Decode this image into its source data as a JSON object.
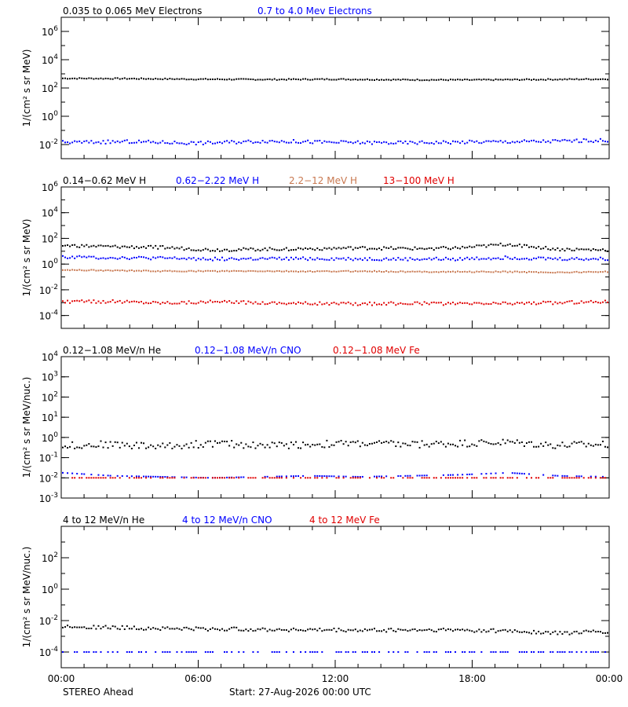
{
  "colors": {
    "black": "#000000",
    "blue": "#0000ff",
    "tan": "#c87850",
    "red": "#e00000"
  },
  "footer": {
    "mission": "STEREO Ahead",
    "start": "Start: 27-Aug-2026 00:00 UTC"
  },
  "chart_data": [
    {
      "type": "scatter",
      "x_ticks": [
        "00:00",
        "06:00",
        "12:00",
        "18:00",
        "00:00"
      ],
      "x_range_hours": [
        0,
        24
      ],
      "ylabel": "1/(cm² s sr MeV)",
      "ylim_log10": [
        -3,
        7
      ],
      "y_ticks": [
        {
          "exp": -2,
          "label": "10",
          "sup": "-2"
        },
        {
          "exp": 0,
          "label": "10",
          "sup": "0"
        },
        {
          "exp": 2,
          "label": "10",
          "sup": "2"
        },
        {
          "exp": 4,
          "label": "10",
          "sup": "4"
        },
        {
          "exp": 6,
          "label": "10",
          "sup": "6"
        }
      ],
      "series": [
        {
          "name": "0.035 to 0.065 MeV Electrons",
          "color": "#000000",
          "log10_values": [
            2.68,
            2.66,
            2.62,
            2.6,
            2.62,
            2.58,
            2.57,
            2.6,
            2.63
          ]
        },
        {
          "name": "0.7 to 4.0 Mev Electrons",
          "color": "#0000ff",
          "log10_values": [
            -1.85,
            -1.8,
            -1.9,
            -1.75,
            -1.85,
            -1.88,
            -1.82,
            -1.78,
            -1.7
          ]
        }
      ]
    },
    {
      "type": "scatter",
      "x_ticks": [
        "00:00",
        "06:00",
        "12:00",
        "18:00",
        "00:00"
      ],
      "x_range_hours": [
        0,
        24
      ],
      "ylabel": "1/(cm² s sr MeV)",
      "ylim_log10": [
        -5,
        6
      ],
      "y_ticks": [
        {
          "exp": -4,
          "label": "10",
          "sup": "-4"
        },
        {
          "exp": -2,
          "label": "10",
          "sup": "-2"
        },
        {
          "exp": 0,
          "label": "10",
          "sup": "0"
        },
        {
          "exp": 2,
          "label": "10",
          "sup": "2"
        },
        {
          "exp": 4,
          "label": "10",
          "sup": "4"
        },
        {
          "exp": 6,
          "label": "10",
          "sup": "6"
        }
      ],
      "series": [
        {
          "name": "0.14−0.62 MeV H",
          "color": "#000000",
          "log10_values": [
            1.45,
            1.35,
            1.3,
            1.1,
            1.15,
            1.2,
            1.25,
            1.2,
            1.25,
            1.55,
            1.15,
            1.1
          ]
        },
        {
          "name": "0.62−2.22 MeV H",
          "color": "#0000ff",
          "log10_values": [
            0.55,
            0.5,
            0.45,
            0.4,
            0.4,
            0.42,
            0.4,
            0.38,
            0.4,
            0.5,
            0.4,
            0.4
          ]
        },
        {
          "name": "2.2−12 MeV H",
          "color": "#c87850",
          "log10_values": [
            -0.45,
            -0.5,
            -0.55,
            -0.55,
            -0.55,
            -0.58,
            -0.55,
            -0.6,
            -0.6,
            -0.6,
            -0.65,
            -0.6
          ]
        },
        {
          "name": "13−100 MeV H",
          "color": "#e00000",
          "log10_values": [
            -2.95,
            -2.9,
            -3.0,
            -2.95,
            -3.0,
            -3.05,
            -3.1,
            -3.05,
            -3.1,
            -3.05,
            -3.0,
            -2.9
          ]
        }
      ]
    },
    {
      "type": "scatter",
      "x_ticks": [
        "00:00",
        "06:00",
        "12:00",
        "18:00",
        "00:00"
      ],
      "x_range_hours": [
        0,
        24
      ],
      "ylabel": "1/(cm² s sr MeV/nuc.)",
      "ylim_log10": [
        -3,
        4
      ],
      "y_ticks": [
        {
          "exp": -3,
          "label": "10",
          "sup": "-3"
        },
        {
          "exp": -2,
          "label": "10",
          "sup": "-2"
        },
        {
          "exp": -1,
          "label": "10",
          "sup": "-1"
        },
        {
          "exp": 0,
          "label": "10",
          "sup": "0"
        },
        {
          "exp": 1,
          "label": "10",
          "sup": "1"
        },
        {
          "exp": 2,
          "label": "10",
          "sup": "2"
        },
        {
          "exp": 3,
          "label": "10",
          "sup": "3"
        },
        {
          "exp": 4,
          "label": "10",
          "sup": "4"
        }
      ],
      "series": [
        {
          "name": "0.12−1.08 MeV/n He",
          "color": "#000000",
          "log10_values": [
            -0.4,
            -0.35,
            -0.45,
            -0.3,
            -0.4,
            -0.35,
            -0.3,
            -0.35,
            -0.3,
            -0.25,
            -0.4,
            -0.35
          ]
        },
        {
          "name": "0.12−1.08 MeV/n CNO",
          "color": "#0000ff",
          "log10_values": [
            -1.75,
            -1.9,
            -1.95,
            -2.0,
            -1.95,
            -1.9,
            -1.95,
            -1.9,
            -1.85,
            -1.75,
            -1.9,
            -1.95
          ]
        },
        {
          "name": "0.12−1.08 MeV Fe",
          "color": "#e00000",
          "log10_values": [
            -2.0,
            -2.0,
            -2.0,
            -2.0,
            -2.0,
            -2.0,
            -2.0,
            -2.0,
            -2.0,
            -2.0,
            -2.0,
            -2.0
          ]
        }
      ]
    },
    {
      "type": "scatter",
      "x_ticks": [
        "00:00",
        "06:00",
        "12:00",
        "18:00",
        "00:00"
      ],
      "x_range_hours": [
        0,
        24
      ],
      "ylabel": "1/(cm² s sr MeV/nuc.)",
      "ylim_log10": [
        -5,
        4
      ],
      "y_ticks": [
        {
          "exp": -4,
          "label": "10",
          "sup": "-4"
        },
        {
          "exp": -2,
          "label": "10",
          "sup": "-2"
        },
        {
          "exp": 0,
          "label": "10",
          "sup": "0"
        },
        {
          "exp": 2,
          "label": "10",
          "sup": "2"
        }
      ],
      "series": [
        {
          "name": "4 to 12 MeV/n He",
          "color": "#000000",
          "log10_values": [
            -2.35,
            -2.45,
            -2.5,
            -2.55,
            -2.55,
            -2.6,
            -2.62,
            -2.6,
            -2.6,
            -2.65,
            -2.8,
            -2.7
          ]
        },
        {
          "name": "4 to 12 MeV/n CNO",
          "color": "#0000ff",
          "log10_values": [
            -4.0,
            -4.0,
            -4.0,
            -4.0,
            -4.0,
            -4.0,
            -4.0,
            -4.0,
            -4.0,
            -4.0,
            -4.0,
            -4.0
          ]
        },
        {
          "name": "4 to 12 MeV Fe",
          "color": "#e00000",
          "log10_values": []
        }
      ]
    }
  ]
}
